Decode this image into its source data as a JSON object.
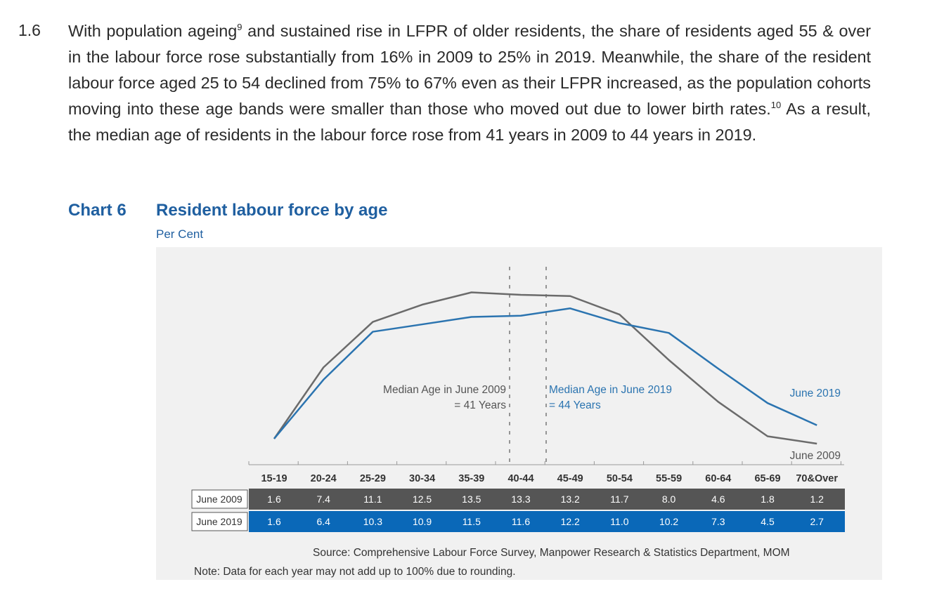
{
  "paragraph": {
    "number": "1.6",
    "part1": "With population ageing",
    "fn1": "9",
    "part2": " and sustained rise in LFPR of older residents, the share of residents aged 55 & over in the labour force rose substantially from 16% in 2009 to 25% in 2019.  Meanwhile, the share of the resident labour force aged 25 to 54 declined from 75% to 67% even as their LFPR increased, as the population cohorts moving into these age bands were smaller than those who moved out due to lower birth rates.",
    "fn2": "10",
    "part3": "  As a result, the median age of residents in the labour force rose from 41 years in 2009 to 44 years in 2019."
  },
  "chart_header": {
    "label": "Chart 6",
    "title": "Resident labour force by age",
    "unit": "Per Cent"
  },
  "chart_data": {
    "type": "line",
    "categories": [
      "15-19",
      "20-24",
      "25-29",
      "30-34",
      "35-39",
      "40-44",
      "45-49",
      "50-54",
      "55-59",
      "60-64",
      "65-69",
      "70&Over"
    ],
    "series": [
      {
        "name": "June 2009",
        "values": [
          1.6,
          7.4,
          11.1,
          12.5,
          13.5,
          13.3,
          13.2,
          11.7,
          8.0,
          4.6,
          1.8,
          1.2
        ],
        "color": "#6b6b6b"
      },
      {
        "name": "June 2019",
        "values": [
          1.6,
          6.4,
          10.3,
          10.9,
          11.5,
          11.6,
          12.2,
          11.0,
          10.2,
          7.3,
          4.5,
          2.7
        ],
        "color": "#2b74b0"
      }
    ],
    "ylim": [
      1.2,
      13.7
    ],
    "grid": false,
    "annotations": [
      {
        "text_line1": "Median Age in June 2009",
        "text_line2": "= 41 Years",
        "series": "June 2009"
      },
      {
        "text_line1": "Median Age in June 2019",
        "text_line2": "= 44 Years",
        "series": "June 2019"
      }
    ],
    "table_rows": [
      "June 2009",
      "June 2019"
    ]
  },
  "colors": {
    "series_2009": "#6b6b6b",
    "series_2019": "#2b74b0",
    "row_2009_bg": "#555555",
    "row_2019_bg": "#0a68b8",
    "panel_bg": "#f1f1f1",
    "title_blue": "#1f5fa0"
  },
  "footer": {
    "source": "Source: Comprehensive Labour Force Survey, Manpower Research & Statistics Department, MOM",
    "note": "Note:  Data for each year may not add up to 100% due to rounding."
  }
}
